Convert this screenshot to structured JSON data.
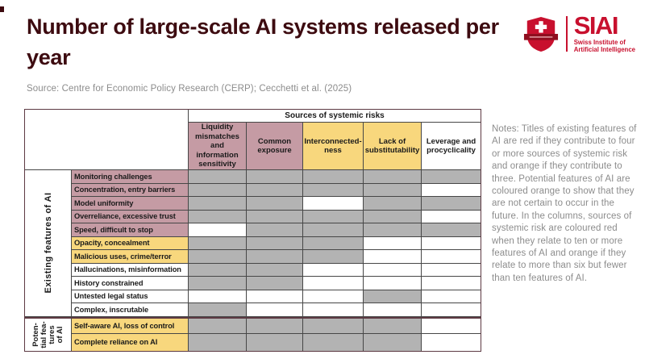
{
  "header": {
    "title": "Number of large-scale AI systems released per year",
    "source": "Source: Centre for Economic Policy Research (CERP); Cecchetti et al. (2025)",
    "logo": {
      "wordmark": "SIAI",
      "subtitle": "Swiss Institute of\nArtificial Intelligence"
    }
  },
  "notes": {
    "text": "Notes: Titles of existing features of AI are red if they contribute to four or more sources of systemic risk and orange if they contribute to three. Potential features of AI are coloured orange to show that they are not certain to occur in the future. In the columns, sources of systemic risk are coloured red when they relate to ten or more features of AI and orange if they relate to more than six but fewer than ten features of AI.",
    "colour_coding": {
      "row_red": "feature contributes to four or more sources of systemic risk",
      "row_orange": "feature contributes to three sources of systemic risk",
      "column_red": "source relates to ten or more features of AI",
      "column_orange": "source relates to more than six but fewer than ten features of AI"
    }
  },
  "colors": {
    "title_color": "#3d0b10",
    "logo_red": "#c8102e",
    "category_red": "#c59ba4",
    "category_orange": "#f8d77d",
    "filled_cell": "#b3b3b3",
    "empty_cell": "#ffffff",
    "border_outer": "#5d3a43",
    "border_inner": "#474747",
    "notes_gray": "#8c8c8c",
    "source_gray": "#8c8c8c"
  },
  "table": {
    "top_header": "Sources of systemic risks",
    "columns": [
      {
        "label": "Liquidity\nmismatches and\ninformation\nsensitivity",
        "category": "red"
      },
      {
        "label": "Common\nexposure",
        "category": "red"
      },
      {
        "label": "Interconnected-\nness",
        "category": "orange"
      },
      {
        "label": "Lack of\nsubstitutability",
        "category": "orange"
      },
      {
        "label": "Leverage and\nprocyclicality",
        "category": "white"
      }
    ],
    "sections": [
      {
        "label": "Existing features of AI",
        "rows": [
          {
            "label": "Monitoring challenges",
            "category": "red",
            "cells": [
              1,
              1,
              1,
              1,
              1
            ]
          },
          {
            "label": "Concentration, entry barriers",
            "category": "red",
            "cells": [
              1,
              1,
              1,
              1,
              0
            ]
          },
          {
            "label": "Model uniformity",
            "category": "red",
            "cells": [
              1,
              1,
              0,
              1,
              1
            ]
          },
          {
            "label": "Overreliance, excessive trust",
            "category": "red",
            "cells": [
              1,
              1,
              1,
              1,
              0
            ]
          },
          {
            "label": "Speed, difficult to stop",
            "category": "red",
            "cells": [
              0,
              1,
              1,
              1,
              1
            ]
          },
          {
            "label": "Opacity, concealment",
            "category": "orange",
            "cells": [
              1,
              1,
              1,
              0,
              0
            ]
          },
          {
            "label": "Malicious uses, crime/terror",
            "category": "orange",
            "cells": [
              1,
              1,
              1,
              0,
              0
            ]
          },
          {
            "label": "Hallucinations, misinformation",
            "category": "white",
            "cells": [
              1,
              1,
              0,
              0,
              0
            ]
          },
          {
            "label": "History constrained",
            "category": "white",
            "cells": [
              1,
              1,
              0,
              0,
              0
            ]
          },
          {
            "label": "Untested legal status",
            "category": "white",
            "cells": [
              0,
              0,
              0,
              1,
              0
            ]
          },
          {
            "label": "Complex, inscrutable",
            "category": "white",
            "cells": [
              1,
              0,
              0,
              0,
              0
            ]
          }
        ]
      },
      {
        "label": "Poten-\ntial fea-\ntures\nof AI",
        "rows": [
          {
            "label": "Self-aware AI, loss of control",
            "category": "orange",
            "cells": [
              1,
              1,
              1,
              1,
              0
            ]
          },
          {
            "label": "Complete reliance on AI",
            "category": "orange",
            "cells": [
              1,
              1,
              1,
              1,
              0
            ]
          }
        ]
      }
    ]
  },
  "chart_data": {
    "type": "heatmap",
    "title": "Number of large-scale AI systems released per year",
    "source": "Centre for Economic Policy Research (CERP); Cecchetti et al. (2025)",
    "columns_header": "Sources of systemic risks",
    "columns": [
      "Liquidity mismatches and information sensitivity",
      "Common exposure",
      "Interconnectedness",
      "Lack of substitutability",
      "Leverage and procyclicality"
    ],
    "column_risk_level": [
      "red",
      "red",
      "orange",
      "orange",
      "none"
    ],
    "row_groups": [
      {
        "name": "Existing features of AI",
        "rows": [
          "Monitoring challenges",
          "Concentration, entry barriers",
          "Model uniformity",
          "Overreliance, excessive trust",
          "Speed, difficult to stop",
          "Opacity, concealment",
          "Malicious uses, crime/terror",
          "Hallucinations, misinformation",
          "History constrained",
          "Untested legal status",
          "Complex, inscrutable"
        ]
      },
      {
        "name": "Potential features of AI",
        "rows": [
          "Self-aware AI, loss of control",
          "Complete reliance on AI"
        ]
      }
    ],
    "row_risk_level": [
      "red",
      "red",
      "red",
      "red",
      "red",
      "orange",
      "orange",
      "none",
      "none",
      "none",
      "none",
      "orange",
      "orange"
    ],
    "matrix": [
      [
        1,
        1,
        1,
        1,
        1
      ],
      [
        1,
        1,
        1,
        1,
        0
      ],
      [
        1,
        1,
        0,
        1,
        1
      ],
      [
        1,
        1,
        1,
        1,
        0
      ],
      [
        0,
        1,
        1,
        1,
        1
      ],
      [
        1,
        1,
        1,
        0,
        0
      ],
      [
        1,
        1,
        1,
        0,
        0
      ],
      [
        1,
        1,
        0,
        0,
        0
      ],
      [
        1,
        1,
        0,
        0,
        0
      ],
      [
        0,
        0,
        0,
        1,
        0
      ],
      [
        1,
        0,
        0,
        0,
        0
      ],
      [
        1,
        1,
        1,
        1,
        0
      ],
      [
        1,
        1,
        1,
        1,
        0
      ]
    ],
    "matrix_encoding": "1 = grey shaded cell (feature relates to this source of systemic risk), 0 = white cell"
  }
}
